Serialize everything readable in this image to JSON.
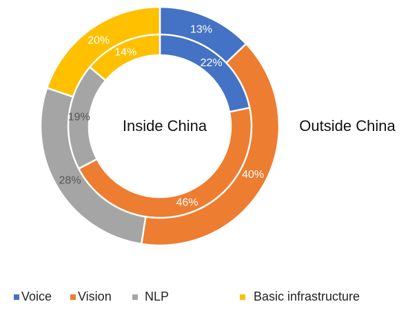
{
  "chart_data": {
    "type": "pie",
    "subtype": "nested-donut",
    "categories": [
      "Voice",
      "Vision",
      "NLP",
      "Basic infrastructure"
    ],
    "colors": [
      "#4472C4",
      "#ED7D31",
      "#A5A5A5",
      "#FFC000"
    ],
    "series": [
      {
        "name": "Inside China",
        "ring": "inner",
        "values": [
          22,
          46,
          19,
          14
        ],
        "labels": [
          "22%",
          "46%",
          "19%",
          "14%"
        ]
      },
      {
        "name": "Outside China",
        "ring": "outer",
        "values": [
          13,
          40,
          28,
          20
        ],
        "labels": [
          "13%",
          "40%",
          "28%",
          "20%"
        ]
      }
    ],
    "legend_position": "bottom",
    "legend": [
      "Voice",
      "Vision",
      "NLP",
      "Basic infrastructure"
    ],
    "annotations": [
      "Inside China",
      "Outside China"
    ]
  }
}
